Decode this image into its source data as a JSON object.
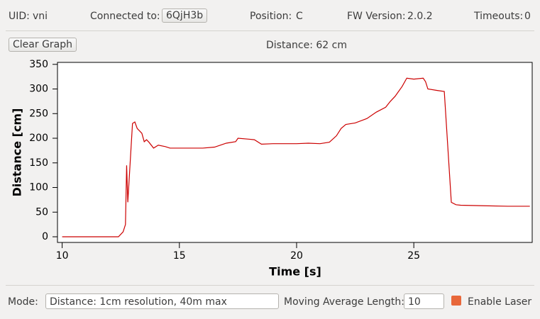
{
  "header": {
    "uid_label": "UID:",
    "uid": "vni",
    "connected_label": "Connected to:",
    "connected": "6QjH3b",
    "position_label": "Position:",
    "position": "C",
    "fw_label": "FW Version:",
    "fw": "2.0.2",
    "timeouts_label": "Timeouts:",
    "timeouts": "0"
  },
  "toolbar": {
    "clear_button": "Clear Graph",
    "distance_readout": "Distance: 62 cm"
  },
  "chart_data": {
    "type": "line",
    "xlabel": "Time [s]",
    "ylabel": "Distance [cm]",
    "x": [
      10,
      12.4,
      12.6,
      12.7,
      12.75,
      12.8,
      12.9,
      13.0,
      13.1,
      13.2,
      13.4,
      13.5,
      13.6,
      13.7,
      13.9,
      14.1,
      14.4,
      14.6,
      15,
      16,
      16.5,
      17,
      17.4,
      17.5,
      18,
      18.2,
      18.5,
      19,
      20,
      20.5,
      21,
      21.4,
      21.7,
      21.9,
      22.1,
      22.5,
      23,
      23.4,
      23.8,
      24.0,
      24.2,
      24.5,
      24.7,
      25,
      25.4,
      25.5,
      25.6,
      26,
      26.3,
      26.6,
      26.8,
      27,
      28,
      29,
      29.95
    ],
    "series": [
      {
        "name": "Distance",
        "color": "#cc0000",
        "values": [
          0,
          0,
          10,
          25,
          145,
          70,
          150,
          230,
          233,
          220,
          210,
          193,
          197,
          192,
          180,
          186,
          183,
          180,
          180,
          180,
          182,
          190,
          193,
          200,
          198,
          197,
          188,
          189,
          189,
          190,
          189,
          192,
          205,
          220,
          228,
          231,
          240,
          253,
          263,
          275,
          285,
          305,
          322,
          320,
          322,
          315,
          300,
          297,
          295,
          70,
          65,
          64,
          63,
          62,
          62
        ]
      }
    ],
    "xlim": [
      9.8,
      30.05
    ],
    "ylim": [
      -11.5,
      354
    ],
    "xticks": [
      10,
      15,
      20,
      25
    ],
    "yticks": [
      0,
      50,
      100,
      150,
      200,
      250,
      300,
      350
    ]
  },
  "controls": {
    "mode_label": "Mode:",
    "mode_value": "Distance: 1cm resolution, 40m max",
    "avg_label": "Moving Average Length:",
    "avg_value": "10",
    "laser_label": "Enable Laser"
  }
}
